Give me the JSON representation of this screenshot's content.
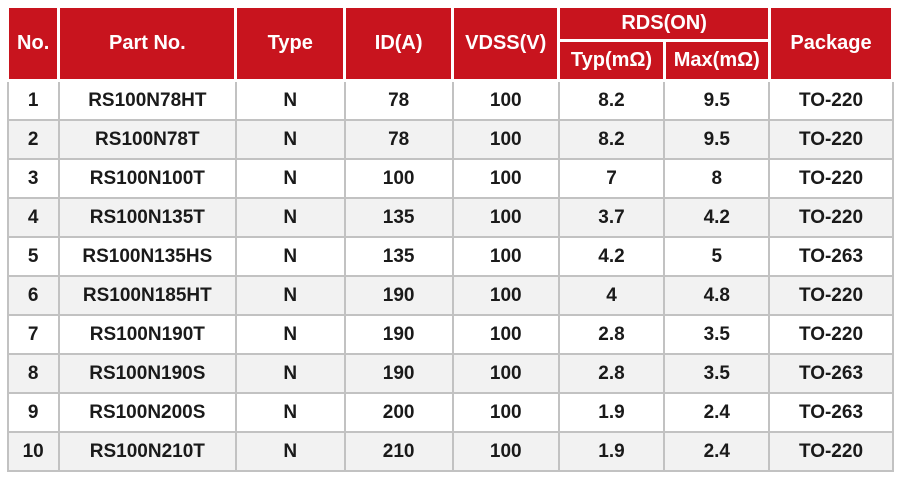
{
  "table": {
    "header": {
      "no": "No.",
      "part_no": "Part No.",
      "type": "Type",
      "id_a": "ID(A)",
      "vdss_v": "VDSS(V)",
      "rds_on": "RDS(ON)",
      "typ_mohm": "Typ(mΩ)",
      "max_mohm": "Max(mΩ)",
      "package": "Package"
    },
    "rows": [
      {
        "no": "1",
        "part_no": "RS100N78HT",
        "type": "N",
        "id_a": "78",
        "vdss_v": "100",
        "typ_mohm": "8.2",
        "max_mohm": "9.5",
        "package": "TO-220"
      },
      {
        "no": "2",
        "part_no": "RS100N78T",
        "type": "N",
        "id_a": "78",
        "vdss_v": "100",
        "typ_mohm": "8.2",
        "max_mohm": "9.5",
        "package": "TO-220"
      },
      {
        "no": "3",
        "part_no": "RS100N100T",
        "type": "N",
        "id_a": "100",
        "vdss_v": "100",
        "typ_mohm": "7",
        "max_mohm": "8",
        "package": "TO-220"
      },
      {
        "no": "4",
        "part_no": "RS100N135T",
        "type": "N",
        "id_a": "135",
        "vdss_v": "100",
        "typ_mohm": "3.7",
        "max_mohm": "4.2",
        "package": "TO-220"
      },
      {
        "no": "5",
        "part_no": "RS100N135HS",
        "type": "N",
        "id_a": "135",
        "vdss_v": "100",
        "typ_mohm": "4.2",
        "max_mohm": "5",
        "package": "TO-263"
      },
      {
        "no": "6",
        "part_no": "RS100N185HT",
        "type": "N",
        "id_a": "190",
        "vdss_v": "100",
        "typ_mohm": "4",
        "max_mohm": "4.8",
        "package": "TO-220"
      },
      {
        "no": "7",
        "part_no": "RS100N190T",
        "type": "N",
        "id_a": "190",
        "vdss_v": "100",
        "typ_mohm": "2.8",
        "max_mohm": "3.5",
        "package": "TO-220"
      },
      {
        "no": "8",
        "part_no": "RS100N190S",
        "type": "N",
        "id_a": "190",
        "vdss_v": "100",
        "typ_mohm": "2.8",
        "max_mohm": "3.5",
        "package": "TO-263"
      },
      {
        "no": "9",
        "part_no": "RS100N200S",
        "type": "N",
        "id_a": "200",
        "vdss_v": "100",
        "typ_mohm": "1.9",
        "max_mohm": "2.4",
        "package": "TO-263"
      },
      {
        "no": "10",
        "part_no": "RS100N210T",
        "type": "N",
        "id_a": "210",
        "vdss_v": "100",
        "typ_mohm": "1.9",
        "max_mohm": "2.4",
        "package": "TO-220"
      }
    ]
  },
  "chart_data": {
    "type": "table",
    "title": "",
    "columns": [
      "No.",
      "Part No.",
      "Type",
      "ID(A)",
      "VDSS(V)",
      "RDS(ON) Typ(mΩ)",
      "RDS(ON) Max(mΩ)",
      "Package"
    ],
    "column_groups": [
      {
        "label": "RDS(ON)",
        "spans": [
          "Typ(mΩ)",
          "Max(mΩ)"
        ]
      }
    ],
    "rows": [
      [
        "1",
        "RS100N78HT",
        "N",
        "78",
        "100",
        "8.2",
        "9.5",
        "TO-220"
      ],
      [
        "2",
        "RS100N78T",
        "N",
        "78",
        "100",
        "8.2",
        "9.5",
        "TO-220"
      ],
      [
        "3",
        "RS100N100T",
        "N",
        "100",
        "100",
        "7",
        "8",
        "TO-220"
      ],
      [
        "4",
        "RS100N135T",
        "N",
        "135",
        "100",
        "3.7",
        "4.2",
        "TO-220"
      ],
      [
        "5",
        "RS100N135HS",
        "N",
        "135",
        "100",
        "4.2",
        "5",
        "TO-263"
      ],
      [
        "6",
        "RS100N185HT",
        "N",
        "190",
        "100",
        "4",
        "4.8",
        "TO-220"
      ],
      [
        "7",
        "RS100N190T",
        "N",
        "190",
        "100",
        "2.8",
        "3.5",
        "TO-220"
      ],
      [
        "8",
        "RS100N190S",
        "N",
        "190",
        "100",
        "2.8",
        "3.5",
        "TO-263"
      ],
      [
        "9",
        "RS100N200S",
        "N",
        "200",
        "100",
        "1.9",
        "2.4",
        "TO-263"
      ],
      [
        "10",
        "RS100N210T",
        "N",
        "210",
        "100",
        "1.9",
        "2.4",
        "TO-220"
      ]
    ]
  },
  "colors": {
    "header_bg": "#c8141e",
    "header_text": "#ffffff",
    "row_alt_bg": "#f2f2f2",
    "grid_line": "#c2c2c2",
    "body_text": "#1a1a1a"
  }
}
